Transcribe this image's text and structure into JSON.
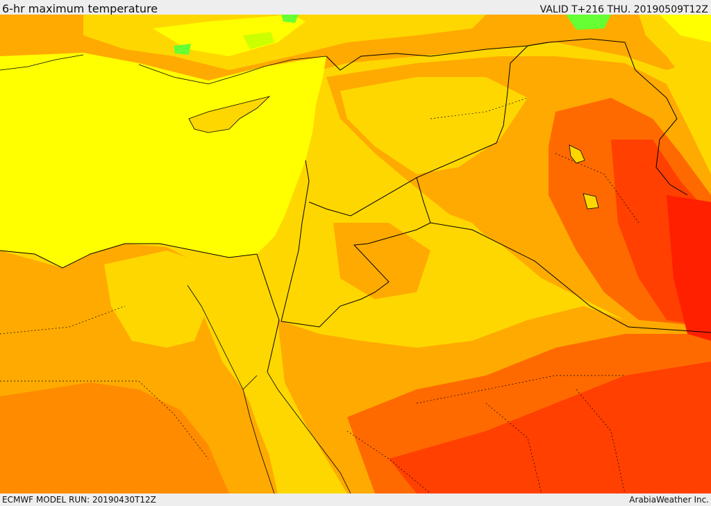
{
  "header": {
    "title": "6-hr maximum temperature",
    "valid_time": "VALID T+216 THU. 20190509T12Z"
  },
  "footer": {
    "model_run": "ECMWF MODEL RUN: 20190430T12Z",
    "credit": "ArabiaWeather Inc."
  },
  "colors": {
    "sea": "#ffff00",
    "band_warm": "#ffd700",
    "band_hot": "#ffaa00",
    "band_hotter": "#ff8c00",
    "band_very_hot": "#ff6a00",
    "band_extreme": "#ff4000",
    "band_max": "#ff2000",
    "band_cool": "#ccff00",
    "band_cooler": "#66ff33",
    "border": "#000000"
  }
}
